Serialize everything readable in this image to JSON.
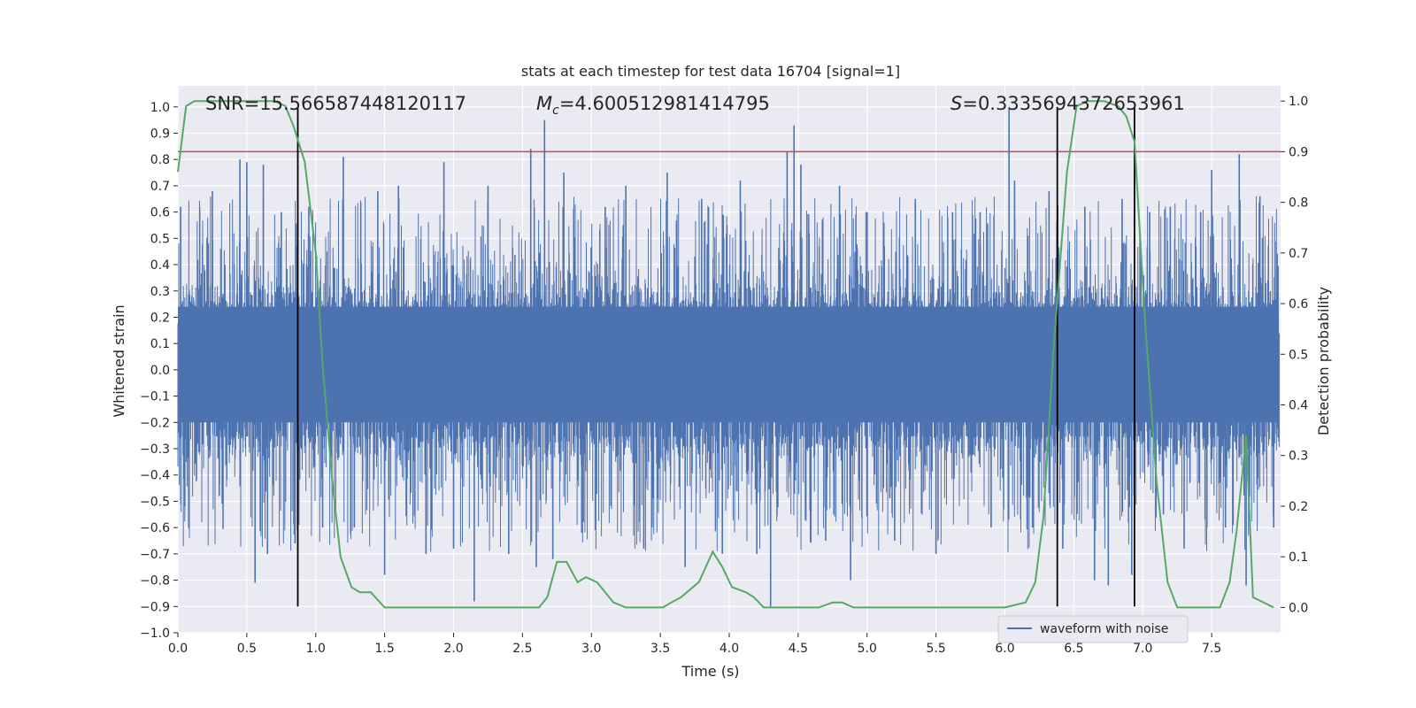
{
  "chart_data": {
    "type": "line",
    "title": "stats at each timestep for test data 16704 [signal=1]",
    "xlabel": "Time (s)",
    "ylabel": "Whitened strain",
    "ylabel_right": "Detection probability",
    "xlim": [
      0.0,
      8.0
    ],
    "ylim": [
      -1.0,
      1.08
    ],
    "ylim_right": [
      -0.05,
      1.03
    ],
    "x_ticks": [
      0.0,
      0.5,
      1.0,
      1.5,
      2.0,
      2.5,
      3.0,
      3.5,
      4.0,
      4.5,
      5.0,
      5.5,
      6.0,
      6.5,
      7.0,
      7.5
    ],
    "y_ticks": [
      -1.0,
      -0.9,
      -0.8,
      -0.7,
      -0.6,
      -0.5,
      -0.4,
      -0.3,
      -0.2,
      -0.1,
      0.0,
      0.1,
      0.2,
      0.3,
      0.4,
      0.5,
      0.6,
      0.7,
      0.8,
      0.9,
      1.0
    ],
    "y_right_ticks": [
      0.0,
      0.1,
      0.2,
      0.3,
      0.4,
      0.5,
      0.6,
      0.7,
      0.8,
      0.9,
      1.0
    ],
    "grid": true,
    "legend_position": "lower-right",
    "annotations": {
      "snr": "SNR=15.566587448120117",
      "mc_symbol": "M",
      "mc_sub": "c",
      "mc_value": "=4.600512981414795",
      "s_symbol": "S",
      "s_value": "=0.3335694372653961"
    },
    "colors": {
      "background": "#eaeaf2",
      "grid": "#ffffff",
      "waveform": "#4c72b0",
      "probability": "#55a868",
      "threshold": "#c44e52",
      "markers": "#000000"
    },
    "series": [
      {
        "name": "waveform with noise",
        "axis": "left",
        "style": "dense-noise",
        "band": [
          -0.2,
          0.24
        ],
        "peaks": [
          [
            0.02,
            0.62
          ],
          [
            0.05,
            -0.52
          ],
          [
            0.25,
            0.68
          ],
          [
            0.3,
            -0.48
          ],
          [
            0.45,
            0.8
          ],
          [
            0.5,
            0.79
          ],
          [
            0.56,
            -0.81
          ],
          [
            0.62,
            0.78
          ],
          [
            0.65,
            -0.7
          ],
          [
            0.75,
            0.6
          ],
          [
            0.85,
            -0.66
          ],
          [
            0.95,
            0.62
          ],
          [
            1.05,
            -0.6
          ],
          [
            1.2,
            0.81
          ],
          [
            1.28,
            -0.6
          ],
          [
            1.45,
            0.68
          ],
          [
            1.5,
            -0.78
          ],
          [
            1.6,
            0.7
          ],
          [
            1.8,
            -0.7
          ],
          [
            1.93,
            0.79
          ],
          [
            2.0,
            -0.68
          ],
          [
            2.15,
            -0.88
          ],
          [
            2.25,
            0.7
          ],
          [
            2.4,
            -0.7
          ],
          [
            2.56,
            0.84
          ],
          [
            2.6,
            -0.75
          ],
          [
            2.66,
            0.95
          ],
          [
            2.72,
            -0.72
          ],
          [
            2.8,
            0.75
          ],
          [
            2.93,
            -0.62
          ],
          [
            3.1,
            0.62
          ],
          [
            3.25,
            0.7
          ],
          [
            3.38,
            -0.68
          ],
          [
            3.55,
            0.75
          ],
          [
            3.68,
            -0.75
          ],
          [
            3.8,
            0.65
          ],
          [
            3.95,
            -0.7
          ],
          [
            4.08,
            0.72
          ],
          [
            4.2,
            -0.7
          ],
          [
            4.3,
            -0.9
          ],
          [
            4.42,
            0.83
          ],
          [
            4.47,
            0.93
          ],
          [
            4.52,
            0.78
          ],
          [
            4.7,
            -0.65
          ],
          [
            4.8,
            0.7
          ],
          [
            4.88,
            -0.8
          ],
          [
            5.0,
            0.6
          ],
          [
            5.2,
            -0.65
          ],
          [
            5.35,
            0.65
          ],
          [
            5.5,
            -0.7
          ],
          [
            5.62,
            0.6
          ],
          [
            5.82,
            0.6
          ],
          [
            5.9,
            -0.6
          ],
          [
            6.03,
            1.0
          ],
          [
            6.07,
            0.72
          ],
          [
            6.2,
            -0.6
          ],
          [
            6.32,
            0.68
          ],
          [
            6.42,
            -0.68
          ],
          [
            6.58,
            0.62
          ],
          [
            6.65,
            -0.8
          ],
          [
            6.75,
            -0.82
          ],
          [
            6.85,
            0.65
          ],
          [
            6.92,
            -0.78
          ],
          [
            7.05,
            0.6
          ],
          [
            7.15,
            -0.55
          ],
          [
            7.2,
            0.62
          ],
          [
            7.3,
            -0.68
          ],
          [
            7.42,
            0.6
          ],
          [
            7.5,
            0.76
          ],
          [
            7.6,
            -0.6
          ],
          [
            7.7,
            0.82
          ],
          [
            7.75,
            -0.82
          ],
          [
            7.85,
            0.66
          ],
          [
            7.95,
            -0.6
          ]
        ]
      },
      {
        "name": "",
        "axis": "right",
        "x": [
          0.0,
          0.06,
          0.12,
          0.3,
          0.5,
          0.7,
          0.78,
          0.84,
          0.92,
          1.0,
          1.05,
          1.12,
          1.18,
          1.26,
          1.32,
          1.4,
          1.5,
          1.6,
          1.8,
          2.0,
          2.1,
          2.3,
          2.5,
          2.62,
          2.68,
          2.75,
          2.82,
          2.9,
          2.96,
          3.04,
          3.1,
          3.16,
          3.25,
          3.4,
          3.52,
          3.58,
          3.65,
          3.78,
          3.88,
          3.95,
          4.02,
          4.12,
          4.18,
          4.25,
          4.35,
          4.5,
          4.65,
          4.75,
          4.82,
          4.9,
          5.0,
          5.2,
          5.5,
          5.8,
          6.0,
          6.15,
          6.22,
          6.28,
          6.35,
          6.45,
          6.52,
          6.6,
          6.72,
          6.82,
          6.88,
          6.94,
          7.02,
          7.1,
          7.18,
          7.25,
          7.4,
          7.56,
          7.63,
          7.68,
          7.75,
          7.8,
          7.95
        ],
        "values": [
          0.86,
          0.99,
          1.0,
          1.0,
          1.0,
          1.0,
          0.99,
          0.95,
          0.88,
          0.7,
          0.48,
          0.25,
          0.1,
          0.04,
          0.03,
          0.03,
          0.0,
          0.0,
          0.0,
          0.0,
          0.0,
          0.0,
          0.0,
          0.0,
          0.02,
          0.09,
          0.09,
          0.05,
          0.06,
          0.05,
          0.03,
          0.01,
          0.0,
          0.0,
          0.0,
          0.01,
          0.02,
          0.05,
          0.11,
          0.08,
          0.04,
          0.03,
          0.02,
          0.0,
          0.0,
          0.0,
          0.0,
          0.01,
          0.01,
          0.0,
          0.0,
          0.0,
          0.0,
          0.0,
          0.0,
          0.01,
          0.05,
          0.18,
          0.5,
          0.86,
          0.99,
          1.0,
          1.0,
          0.99,
          0.97,
          0.92,
          0.55,
          0.25,
          0.05,
          0.0,
          0.0,
          0.0,
          0.05,
          0.15,
          0.34,
          0.02,
          0.0
        ]
      }
    ],
    "threshold_right": 0.9,
    "vertical_markers": [
      0.87,
      6.38,
      6.94
    ],
    "legend": [
      "waveform with noise"
    ]
  }
}
